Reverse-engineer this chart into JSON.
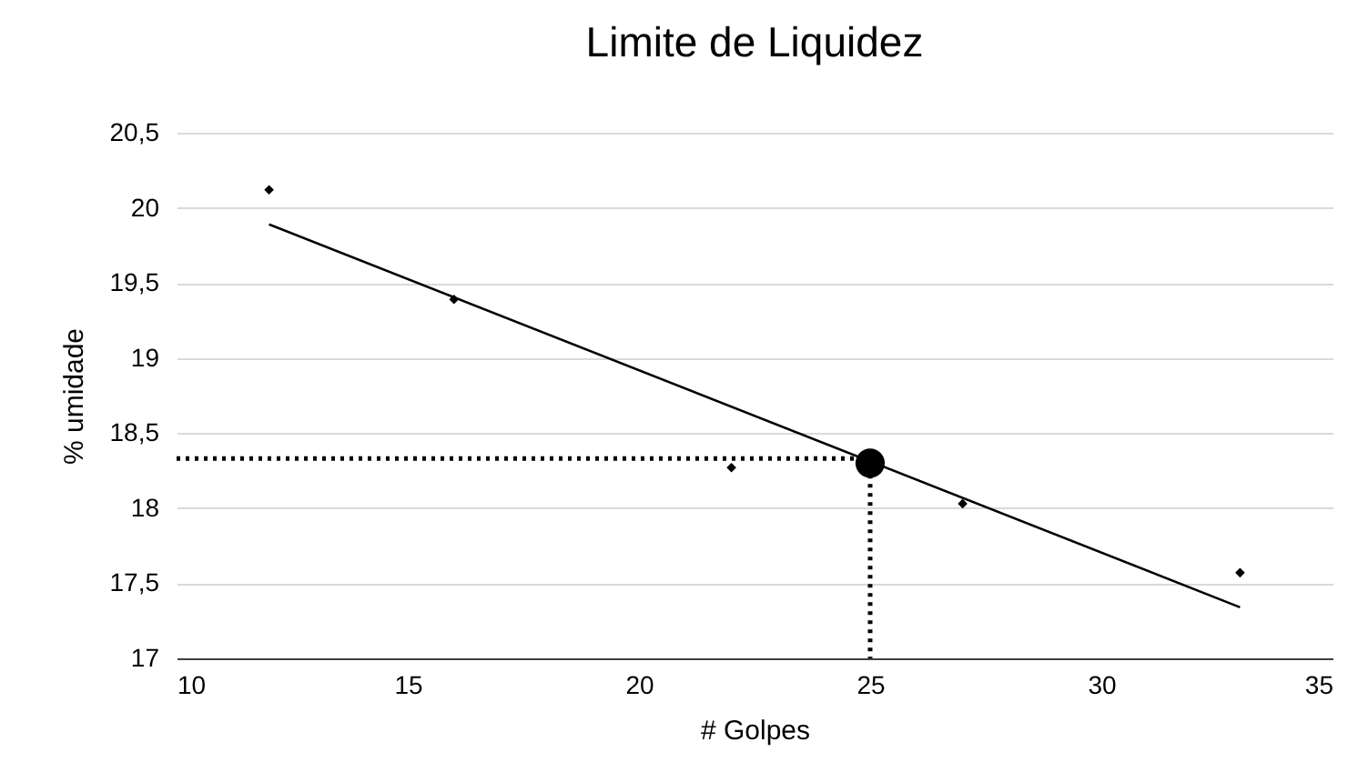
{
  "chart_data": {
    "type": "scatter",
    "title": "Limite de Liquidez",
    "xlabel": "# Golpes",
    "ylabel": "% umidade",
    "xlim": [
      10,
      35
    ],
    "xticks": [
      10,
      15,
      20,
      25,
      30,
      35
    ],
    "ylim": [
      17,
      20.5
    ],
    "yticks": [
      {
        "value": 17,
        "label": "17"
      },
      {
        "value": 17.5,
        "label": "17,5"
      },
      {
        "value": 18,
        "label": "18"
      },
      {
        "value": 18.5,
        "label": "18,5"
      },
      {
        "value": 19,
        "label": "19"
      },
      {
        "value": 19.5,
        "label": "19,5"
      },
      {
        "value": 20,
        "label": "20"
      },
      {
        "value": 20.5,
        "label": "20,5"
      }
    ],
    "grid": "y",
    "series": [
      {
        "type": "line",
        "color": "#000000",
        "x": [
          10,
          25,
          25
        ],
        "values": [
          18.33,
          18.33,
          17
        ],
        "line_style": "dotted",
        "marker": "none"
      },
      {
        "type": "line",
        "color": "#000000",
        "x": [
          12,
          33
        ],
        "values": [
          19.89,
          17.34
        ],
        "line_style": "solid",
        "marker": "none"
      },
      {
        "type": "scatter",
        "color": "#000000",
        "x": [
          12,
          16,
          22,
          27,
          33
        ],
        "values": [
          20.12,
          19.39,
          18.27,
          18.03,
          17.57
        ],
        "marker": "diamond"
      },
      {
        "type": "scatter",
        "color": "#000000",
        "x": [
          25
        ],
        "values": [
          18.3
        ],
        "marker": "circle"
      }
    ]
  }
}
